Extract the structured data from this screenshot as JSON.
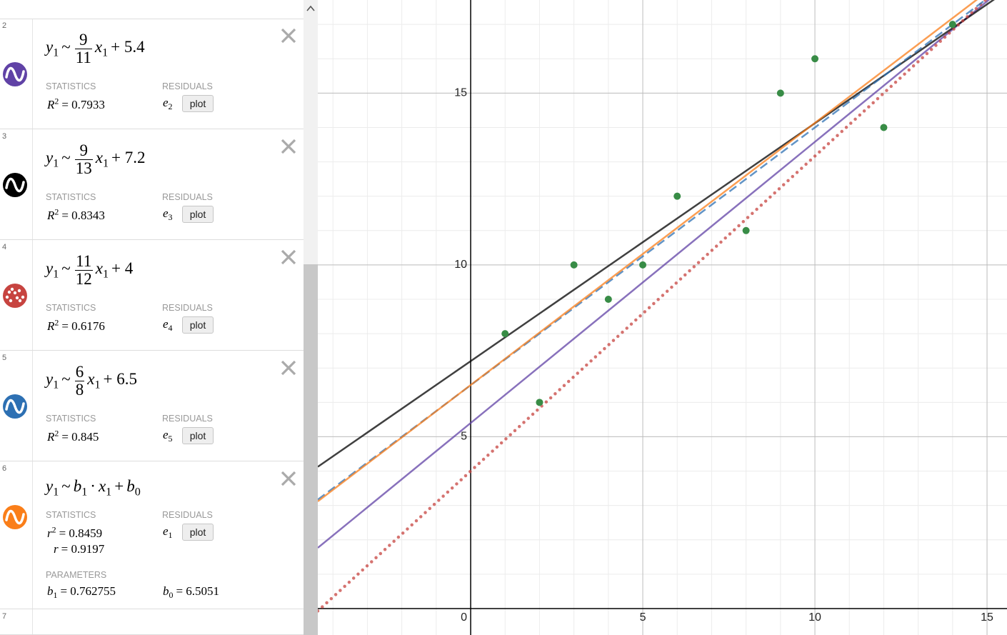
{
  "expressions": [
    {
      "number": "2",
      "color": "#6042a6",
      "icon": "wave",
      "formula": [
        {
          "t": "y",
          "sub": "1"
        },
        {
          "t": "~"
        },
        {
          "num": "9",
          "den": "11"
        },
        {
          "t": "x",
          "sub": "1"
        },
        {
          "t": "+ 5.4"
        }
      ],
      "statistics_label": "STATISTICS",
      "stats": [
        [
          {
            "t": "R",
            "sup": "2"
          },
          {
            "t": "= 0.7933"
          }
        ]
      ],
      "residuals_label": "RESIDUALS",
      "residual": [
        {
          "t": "e",
          "sub": "2"
        }
      ],
      "button": "plot"
    },
    {
      "number": "3",
      "color": "#000000",
      "icon": "wave",
      "formula": [
        {
          "t": "y",
          "sub": "1"
        },
        {
          "t": "~"
        },
        {
          "num": "9",
          "den": "13"
        },
        {
          "t": "x",
          "sub": "1"
        },
        {
          "t": "+ 7.2"
        }
      ],
      "statistics_label": "STATISTICS",
      "stats": [
        [
          {
            "t": "R",
            "sup": "2"
          },
          {
            "t": "= 0.8343"
          }
        ]
      ],
      "residuals_label": "RESIDUALS",
      "residual": [
        {
          "t": "e",
          "sub": "3"
        }
      ],
      "button": "plot"
    },
    {
      "number": "4",
      "color": "#c74440",
      "icon": "dots",
      "formula": [
        {
          "t": "y",
          "sub": "1"
        },
        {
          "t": "~"
        },
        {
          "num": "11",
          "den": "12"
        },
        {
          "t": "x",
          "sub": "1"
        },
        {
          "t": "+ 4"
        }
      ],
      "statistics_label": "STATISTICS",
      "stats": [
        [
          {
            "t": "R",
            "sup": "2"
          },
          {
            "t": "= 0.6176"
          }
        ]
      ],
      "residuals_label": "RESIDUALS",
      "residual": [
        {
          "t": "e",
          "sub": "4"
        }
      ],
      "button": "plot"
    },
    {
      "number": "5",
      "color": "#2d70b3",
      "icon": "wave",
      "formula": [
        {
          "t": "y",
          "sub": "1"
        },
        {
          "t": "~"
        },
        {
          "num": "6",
          "den": "8"
        },
        {
          "t": "x",
          "sub": "1"
        },
        {
          "t": "+ 6.5"
        }
      ],
      "statistics_label": "STATISTICS",
      "stats": [
        [
          {
            "t": "R",
            "sup": "2"
          },
          {
            "t": "= 0.845"
          }
        ]
      ],
      "residuals_label": "RESIDUALS",
      "residual": [
        {
          "t": "e",
          "sub": "5"
        }
      ],
      "button": "plot"
    },
    {
      "number": "6",
      "color": "#fa7e19",
      "icon": "wave",
      "formula": [
        {
          "t": "y",
          "sub": "1"
        },
        {
          "t": "~"
        },
        {
          "t": "b",
          "sub": "1"
        },
        {
          "t": "·"
        },
        {
          "t": "x",
          "sub": "1"
        },
        {
          "t": "+"
        },
        {
          "t": "b",
          "sub": "0"
        }
      ],
      "statistics_label": "STATISTICS",
      "stats": [
        [
          {
            "t": "r",
            "sup": "2"
          },
          {
            "t": "= 0.8459"
          }
        ],
        [
          {
            "t": "r"
          },
          {
            "t": "= 0.9197"
          }
        ]
      ],
      "residuals_label": "RESIDUALS",
      "residual": [
        {
          "t": "e",
          "sub": "1"
        }
      ],
      "button": "plot",
      "parameters_label": "PARAMETERS",
      "params": [
        [
          {
            "t": "b",
            "sub": "1"
          },
          {
            "t": "= 0.762755"
          }
        ],
        [
          {
            "t": "b",
            "sub": "0"
          },
          {
            "t": "= 6.5051"
          }
        ]
      ]
    },
    {
      "number": "7"
    }
  ],
  "chart_data": {
    "type": "scatter",
    "xlim": [
      -4.44,
      15.58
    ],
    "ylim": [
      -0.77,
      17.71
    ],
    "xticks": [
      0,
      5,
      10,
      15
    ],
    "yticks": [
      5,
      10,
      15
    ],
    "grid": true,
    "series": [
      {
        "kind": "line",
        "color": "#6042a6",
        "style": "solid",
        "x": [
          -4.44,
          15.58
        ],
        "values": [
          1.767,
          18.147
        ]
      },
      {
        "kind": "line",
        "color": "#000000",
        "style": "solid",
        "x": [
          -4.44,
          15.58
        ],
        "values": [
          4.126,
          17.986
        ]
      },
      {
        "kind": "line",
        "color": "#c74440",
        "style": "dotted",
        "x": [
          -4.44,
          15.58
        ],
        "values": [
          -0.07,
          18.282
        ]
      },
      {
        "kind": "line",
        "color": "#2d70b3",
        "style": "dashed",
        "x": [
          -4.44,
          15.58
        ],
        "values": [
          3.17,
          18.185
        ]
      },
      {
        "kind": "line",
        "color": "#fa7e19",
        "style": "solid",
        "x": [
          -4.44,
          15.58
        ],
        "values": [
          3.1185,
          18.3888
        ]
      },
      {
        "kind": "points",
        "color": "#388c46",
        "x": [
          1,
          2,
          3,
          4,
          5,
          6,
          8,
          9,
          10,
          12,
          14
        ],
        "values": [
          8,
          6,
          10,
          9,
          10,
          12,
          11,
          15,
          16,
          14,
          17
        ]
      }
    ]
  }
}
